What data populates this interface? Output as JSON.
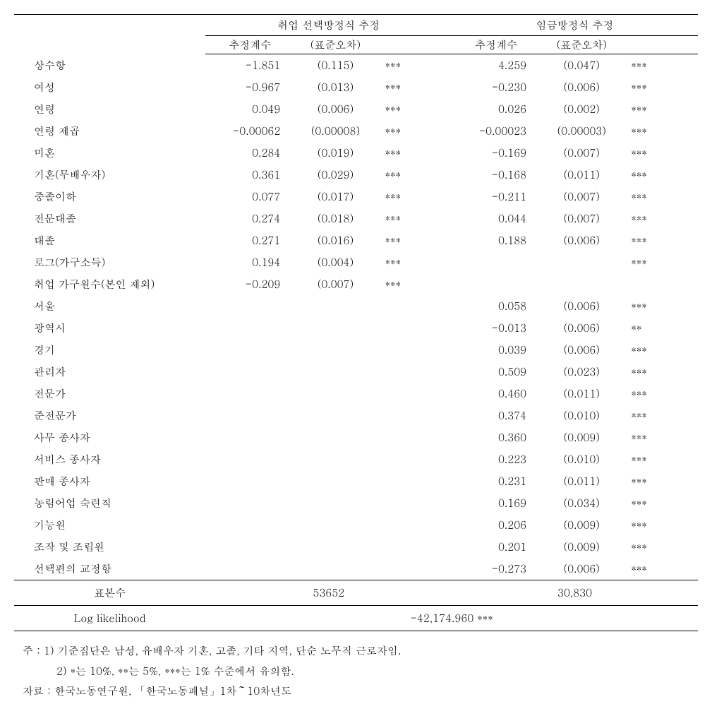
{
  "table": {
    "group_headers": {
      "col1": "취업 선택방정식 추정",
      "col2": "임금방정식 추정"
    },
    "sub_headers": {
      "coef": "추정계수",
      "se": "(표준오차)",
      "coef2": "추정계수",
      "se2": "(표준오차)"
    },
    "rows": [
      {
        "label": "상수항",
        "coef1": "-1.851",
        "se1": "(0.115)",
        "sig1": "***",
        "coef2": "4.259",
        "se2": "(0.047)",
        "sig2": "***"
      },
      {
        "label": "여성",
        "coef1": "-0.967",
        "se1": "(0.013)",
        "sig1": "***",
        "coef2": "-0.230",
        "se2": "(0.006)",
        "sig2": "***"
      },
      {
        "label": "연령",
        "coef1": "0.049",
        "se1": "(0.006)",
        "sig1": "***",
        "coef2": "0.026",
        "se2": "(0.002)",
        "sig2": "***"
      },
      {
        "label": "연령 제곱",
        "coef1": "-0.00062",
        "se1": "(0.00008)",
        "sig1": "***",
        "coef2": "-0.00023",
        "se2": "(0.00003)",
        "sig2": "***"
      },
      {
        "label": "미혼",
        "coef1": "0.284",
        "se1": "(0.019)",
        "sig1": "***",
        "coef2": "-0.169",
        "se2": "(0.007)",
        "sig2": "***"
      },
      {
        "label": "기혼(무배우자)",
        "coef1": "0.361",
        "se1": "(0.029)",
        "sig1": "***",
        "coef2": "-0.168",
        "se2": "(0.011)",
        "sig2": "***"
      },
      {
        "label": "중졸이하",
        "coef1": "0.077",
        "se1": "(0.017)",
        "sig1": "***",
        "coef2": "-0.211",
        "se2": "(0.007)",
        "sig2": "***"
      },
      {
        "label": "전문대졸",
        "coef1": "0.274",
        "se1": "(0.018)",
        "sig1": "***",
        "coef2": "0.044",
        "se2": "(0.007)",
        "sig2": "***"
      },
      {
        "label": "대졸",
        "coef1": "0.271",
        "se1": "(0.016)",
        "sig1": "***",
        "coef2": "0.188",
        "se2": "(0.006)",
        "sig2": "***"
      },
      {
        "label": "로그(가구소득)",
        "coef1": "0.194",
        "se1": "(0.004)",
        "sig1": "***",
        "coef2": "",
        "se2": "",
        "sig2": "***"
      },
      {
        "label": "취업 가구원수(본인 제외)",
        "coef1": "-0.209",
        "se1": "(0.007)",
        "sig1": "***",
        "coef2": "",
        "se2": "",
        "sig2": ""
      },
      {
        "label": "서울",
        "coef1": "",
        "se1": "",
        "sig1": "",
        "coef2": "0.058",
        "se2": "(0.006)",
        "sig2": "***"
      },
      {
        "label": "광역시",
        "coef1": "",
        "se1": "",
        "sig1": "",
        "coef2": "-0.013",
        "se2": "(0.006)",
        "sig2": "**"
      },
      {
        "label": "경기",
        "coef1": "",
        "se1": "",
        "sig1": "",
        "coef2": "0.039",
        "se2": "(0.006)",
        "sig2": "***"
      },
      {
        "label": "관리자",
        "coef1": "",
        "se1": "",
        "sig1": "",
        "coef2": "0.509",
        "se2": "(0.023)",
        "sig2": "***"
      },
      {
        "label": "전문가",
        "coef1": "",
        "se1": "",
        "sig1": "",
        "coef2": "0.460",
        "se2": "(0.011)",
        "sig2": "***"
      },
      {
        "label": "준전문가",
        "coef1": "",
        "se1": "",
        "sig1": "",
        "coef2": "0.374",
        "se2": "(0.010)",
        "sig2": "***"
      },
      {
        "label": "사무 종사자",
        "coef1": "",
        "se1": "",
        "sig1": "",
        "coef2": "0.360",
        "se2": "(0.009)",
        "sig2": "***"
      },
      {
        "label": "서비스 종사자",
        "coef1": "",
        "se1": "",
        "sig1": "",
        "coef2": "0.223",
        "se2": "(0.010)",
        "sig2": "***"
      },
      {
        "label": "판매 종사자",
        "coef1": "",
        "se1": "",
        "sig1": "",
        "coef2": "0.231",
        "se2": "(0.011)",
        "sig2": "***"
      },
      {
        "label": "농림어업 숙련직",
        "coef1": "",
        "se1": "",
        "sig1": "",
        "coef2": "0.169",
        "se2": "(0.034)",
        "sig2": "***"
      },
      {
        "label": "기능원",
        "coef1": "",
        "se1": "",
        "sig1": "",
        "coef2": "0.206",
        "se2": "(0.009)",
        "sig2": "***"
      },
      {
        "label": "조작 및 조립원",
        "coef1": "",
        "se1": "",
        "sig1": "",
        "coef2": "0.201",
        "se2": "(0.009)",
        "sig2": "***"
      },
      {
        "label": "선택편의 교정항",
        "coef1": "",
        "se1": "",
        "sig1": "",
        "coef2": "-0.273",
        "se2": "(0.006)",
        "sig2": "***"
      }
    ],
    "sample_size": {
      "label": "표본수",
      "val1": "53652",
      "val2": "30,830"
    },
    "log_likelihood": {
      "label": "Log likelihood",
      "value": "-42,174.960 ***"
    }
  },
  "notes": {
    "note1": "주 : 1) 기준집단은 남성, 유배우자 기혼, 고졸, 기타 지역, 단순 노무직 근로자임.",
    "note2": "2) *는 10%, **는 5%, ***는 1% 수준에서 유의함.",
    "source": "자료 : 한국노동연구원, 「한국노동패널」1차～10차년도"
  }
}
